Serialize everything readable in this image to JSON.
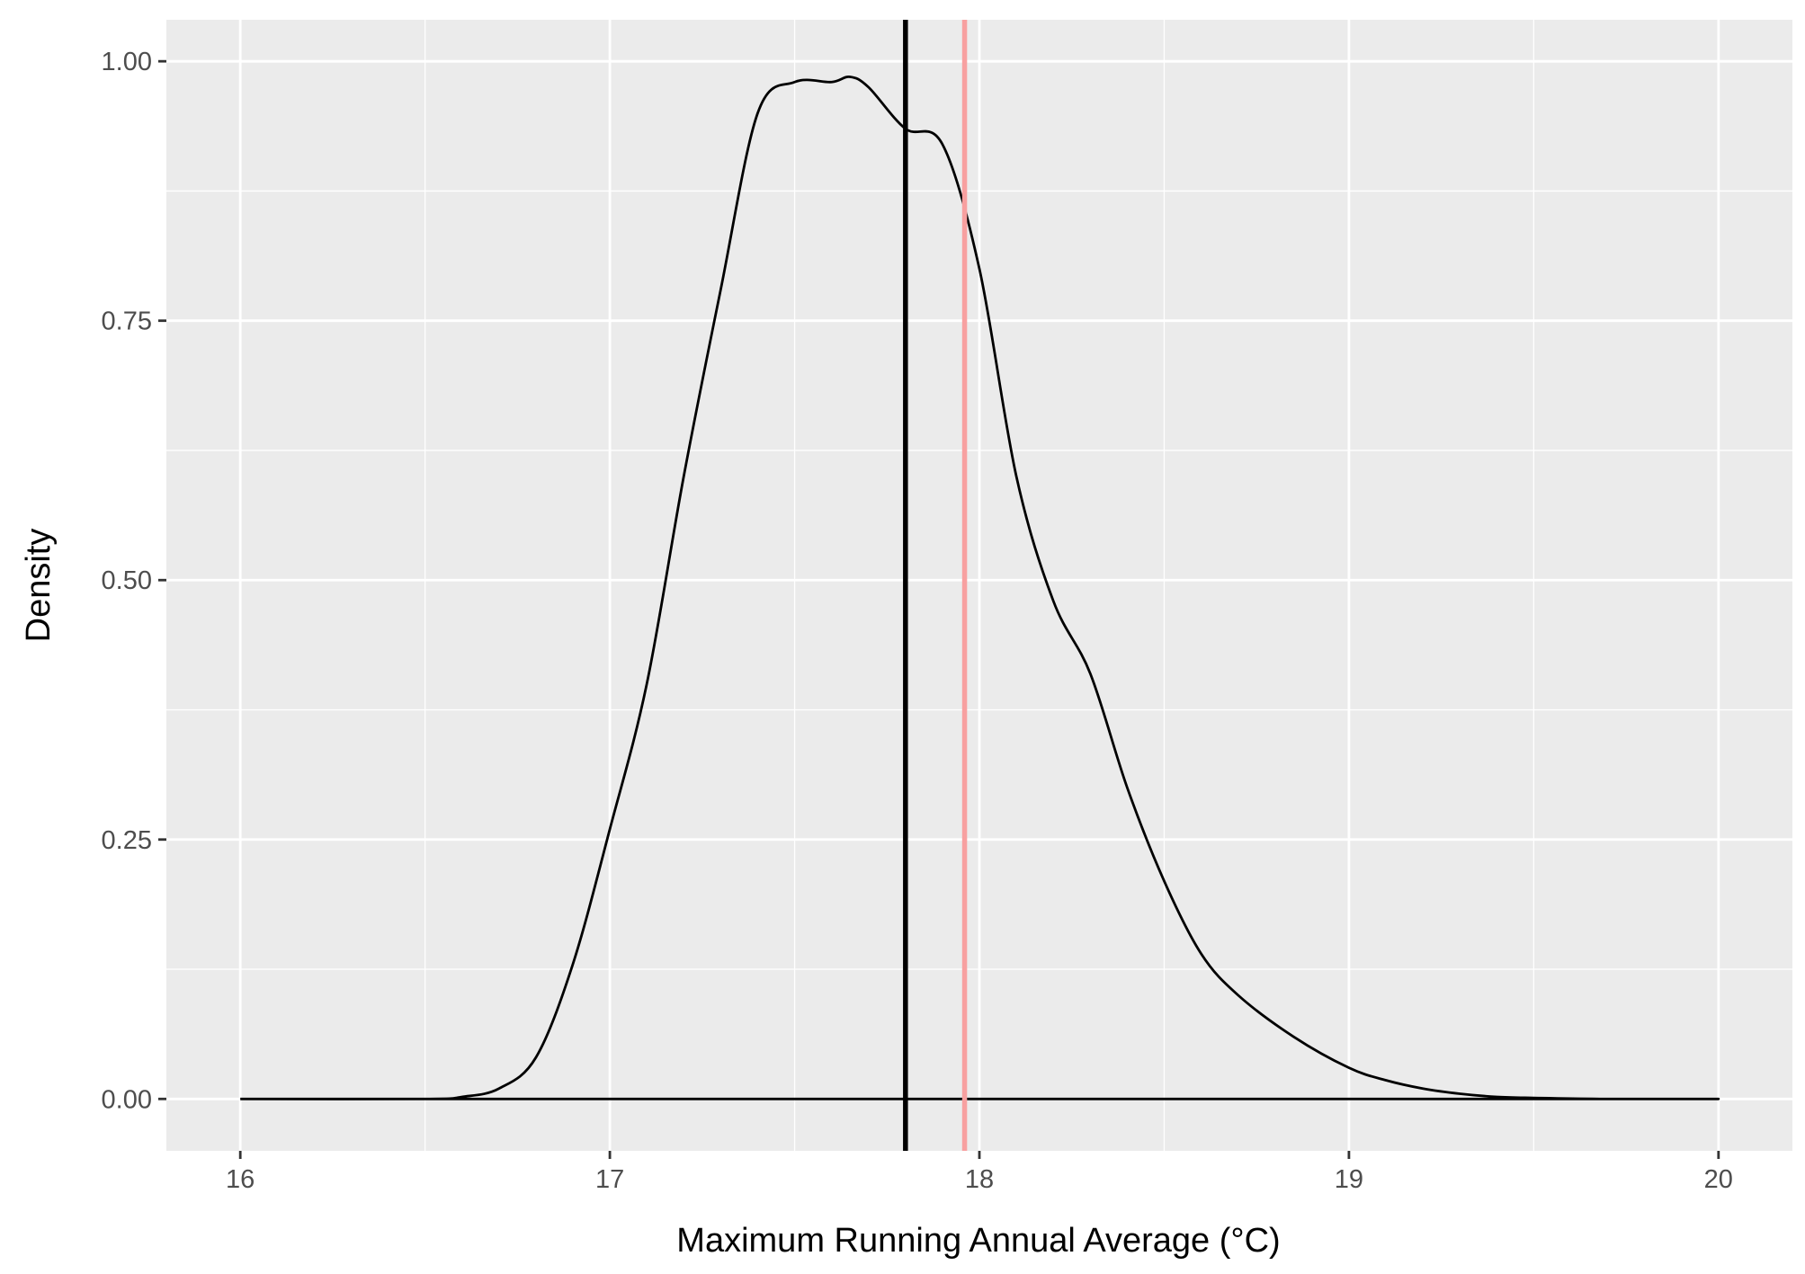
{
  "chart_data": {
    "type": "line",
    "title": "",
    "xlabel": "Maximum Running Annual Average (°C)",
    "ylabel": "Density",
    "xlim": [
      15.8,
      20.2
    ],
    "ylim": [
      -0.05,
      1.04
    ],
    "x_ticks": [
      16,
      17,
      18,
      19,
      20
    ],
    "x_tick_labels": [
      "16",
      "17",
      "18",
      "19",
      "20"
    ],
    "y_ticks": [
      0,
      0.25,
      0.5,
      0.75,
      1.0
    ],
    "y_tick_labels": [
      "0.00",
      "0.25",
      "0.50",
      "0.75",
      "1.00"
    ],
    "grid": true,
    "legend": "none",
    "panel_color": "#ebebeb",
    "series": [
      {
        "color": "#000000",
        "x": [
          16.0,
          16.5,
          16.6,
          16.7,
          16.8,
          16.9,
          17.0,
          17.1,
          17.2,
          17.3,
          17.4,
          17.5,
          17.6,
          17.65,
          17.7,
          17.8,
          17.9,
          18.0,
          18.1,
          18.2,
          18.3,
          18.4,
          18.5,
          18.6,
          18.7,
          18.85,
          19.0,
          19.1,
          19.2,
          19.3,
          19.4,
          19.5,
          19.7,
          20.0
        ],
        "y": [
          0.0,
          0.0,
          0.002,
          0.01,
          0.04,
          0.13,
          0.26,
          0.4,
          0.6,
          0.78,
          0.95,
          0.98,
          0.98,
          0.985,
          0.975,
          0.935,
          0.92,
          0.8,
          0.6,
          0.48,
          0.41,
          0.3,
          0.21,
          0.14,
          0.1,
          0.06,
          0.03,
          0.018,
          0.01,
          0.005,
          0.002,
          0.001,
          0.0,
          0.0
        ]
      }
    ],
    "vlines": [
      {
        "x": 17.8,
        "color": "#000000"
      },
      {
        "x": 17.96,
        "color": "#f8a0a0"
      }
    ]
  }
}
